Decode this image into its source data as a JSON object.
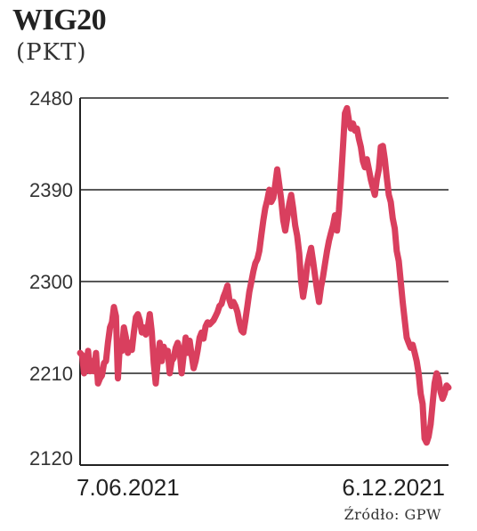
{
  "chart_data": {
    "type": "line",
    "title": "WIG20",
    "subtitle": "(PKT)",
    "source": "Źródło: GPW",
    "ylim": [
      2120,
      2480
    ],
    "yticks": [
      2120,
      2210,
      2300,
      2390,
      2480
    ],
    "x_labels": [
      "7.06.2021",
      "6.12.2021"
    ],
    "grid": "horizontal",
    "line_color": "#d93f5e",
    "series": [
      {
        "values": [
          2230,
          2228,
          2210,
          2215,
          2232,
          2212,
          2222,
          2212,
          2230,
          2200,
          2205,
          2208,
          2220,
          2222,
          2240,
          2255,
          2260,
          2275,
          2266,
          2205,
          2240,
          2232,
          2255,
          2245,
          2230,
          2240,
          2233,
          2250,
          2265,
          2268,
          2262,
          2250,
          2255,
          2248,
          2255,
          2268,
          2250,
          2220,
          2200,
          2222,
          2240,
          2222,
          2236,
          2228,
          2232,
          2210,
          2222,
          2225,
          2235,
          2240,
          2232,
          2210,
          2228,
          2245,
          2230,
          2242,
          2228,
          2215,
          2222,
          2232,
          2245,
          2250,
          2244,
          2256,
          2260,
          2258,
          2260,
          2262,
          2266,
          2270,
          2276,
          2278,
          2285,
          2290,
          2296,
          2282,
          2276,
          2280,
          2276,
          2270,
          2260,
          2252,
          2250,
          2262,
          2276,
          2290,
          2300,
          2310,
          2318,
          2322,
          2330,
          2345,
          2360,
          2372,
          2380,
          2390,
          2378,
          2382,
          2395,
          2410,
          2395,
          2380,
          2360,
          2350,
          2362,
          2376,
          2385,
          2372,
          2355,
          2345,
          2328,
          2300,
          2285,
          2298,
          2315,
          2325,
          2333,
          2320,
          2305,
          2292,
          2280,
          2295,
          2305,
          2318,
          2330,
          2340,
          2348,
          2355,
          2365,
          2350,
          2370,
          2400,
          2432,
          2465,
          2470,
          2458,
          2450,
          2455,
          2448,
          2450,
          2440,
          2432,
          2418,
          2412,
          2420,
          2410,
          2400,
          2392,
          2385,
          2400,
          2410,
          2432,
          2433,
          2420,
          2402,
          2385,
          2378,
          2362,
          2352,
          2330,
          2320,
          2300,
          2280,
          2262,
          2245,
          2240,
          2235,
          2238,
          2230,
          2222,
          2210,
          2190,
          2180,
          2146,
          2142,
          2148,
          2160,
          2180,
          2200,
          2210,
          2205,
          2192,
          2185,
          2190,
          2198,
          2196
        ]
      }
    ]
  }
}
